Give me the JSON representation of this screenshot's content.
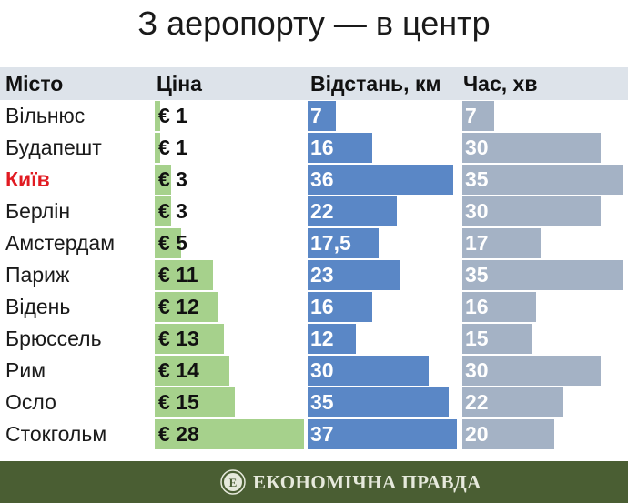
{
  "chart_data": {
    "type": "table",
    "title": "З аеропорту — в центр",
    "columns": [
      "Місто",
      "Ціна",
      "Відстань, км",
      "Час, хв"
    ],
    "price_prefix": "€ ",
    "rows": [
      {
        "city": "Вільнюс",
        "price": 1,
        "distance": "7",
        "time": 7,
        "highlight": false
      },
      {
        "city": "Будапешт",
        "price": 1,
        "distance": "16",
        "time": 30,
        "highlight": false
      },
      {
        "city": "Київ",
        "price": 3,
        "distance": "36",
        "time": 35,
        "highlight": true
      },
      {
        "city": "Берлін",
        "price": 3,
        "distance": "22",
        "time": 30,
        "highlight": false
      },
      {
        "city": "Амстердам",
        "price": 5,
        "distance": "17,5",
        "time": 17,
        "highlight": false
      },
      {
        "city": "Париж",
        "price": 11,
        "distance": "23",
        "time": 35,
        "highlight": false
      },
      {
        "city": "Відень",
        "price": 12,
        "distance": "16",
        "time": 16,
        "highlight": false
      },
      {
        "city": "Брюссель",
        "price": 13,
        "distance": "12",
        "time": 15,
        "highlight": false
      },
      {
        "city": "Рим",
        "price": 14,
        "distance": "30",
        "time": 30,
        "highlight": false
      },
      {
        "city": "Осло",
        "price": 15,
        "distance": "35",
        "time": 22,
        "highlight": false
      },
      {
        "city": "Стокгольм",
        "price": 28,
        "distance": "37",
        "time": 20,
        "highlight": false
      }
    ],
    "colors": {
      "price": "#a6d18c",
      "distance": "#5a87c6",
      "time": "#a4b2c5",
      "highlight": "#e11b22",
      "header_bg": "#dde3ea",
      "footer_bg": "#4a5e33"
    }
  },
  "footer": {
    "brand": "ЕКОНОМІЧНА ПРАВДА",
    "logo_icon": "economic-pravda-logo-icon"
  }
}
